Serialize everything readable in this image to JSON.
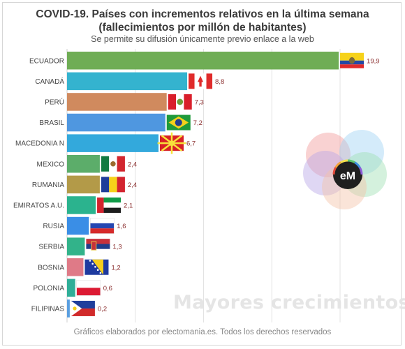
{
  "header": {
    "title_line1": "COVID-19. Países con incrementos relativos en la última semana",
    "title_line2": "(fallecimientos por millón de habitantes)",
    "subtitle": "Se permite su difusión únicamente previo enlace a la web"
  },
  "watermark": "Mayores crecimientos",
  "footer": "Gráficos elaborados por electomania.es. Todos los derechos reservados",
  "logo": {
    "text": "eM"
  },
  "chart_data": {
    "type": "bar",
    "orientation": "horizontal",
    "title": "COVID-19. Países con incrementos relativos en la última semana (fallecimientos por millón de habitantes)",
    "categories": [
      "ECUADOR",
      "CANADÁ",
      "PERÚ",
      "BRASIL",
      "MACEDONIA N",
      "MEXICO",
      "RUMANIA",
      "EMIRATOS A.U.",
      "RUSIA",
      "SERBIA",
      "BOSNIA",
      "POLONIA",
      "FILIPINAS"
    ],
    "values": [
      19.9,
      8.8,
      7.3,
      7.2,
      6.7,
      2.4,
      2.4,
      2.1,
      1.6,
      1.3,
      1.2,
      0.6,
      0.2
    ],
    "value_labels": [
      "19,9",
      "8,8",
      "7,3",
      "7,2",
      "6,7",
      "2,4",
      "2,4",
      "2,1",
      "1,6",
      "1,3",
      "1,2",
      "0,6",
      "0,2"
    ],
    "bar_colors": [
      "#6fad55",
      "#34b3cf",
      "#d08a5e",
      "#4f97e0",
      "#33a9dc",
      "#5cad6a",
      "#b39a48",
      "#2bb38e",
      "#3a8ee6",
      "#32b38a",
      "#df7a87",
      "#2fae98",
      "#5a9fe0"
    ],
    "flags": [
      "ecuador-flag",
      "canada-flag",
      "peru-flag",
      "brazil-flag",
      "north-macedonia-flag",
      "mexico-flag",
      "romania-flag",
      "uae-flag",
      "russia-flag",
      "serbia-flag",
      "bosnia-flag",
      "poland-flag",
      "philippines-flag"
    ],
    "xlim": [
      0,
      20
    ],
    "grid": true,
    "legend": "none"
  }
}
